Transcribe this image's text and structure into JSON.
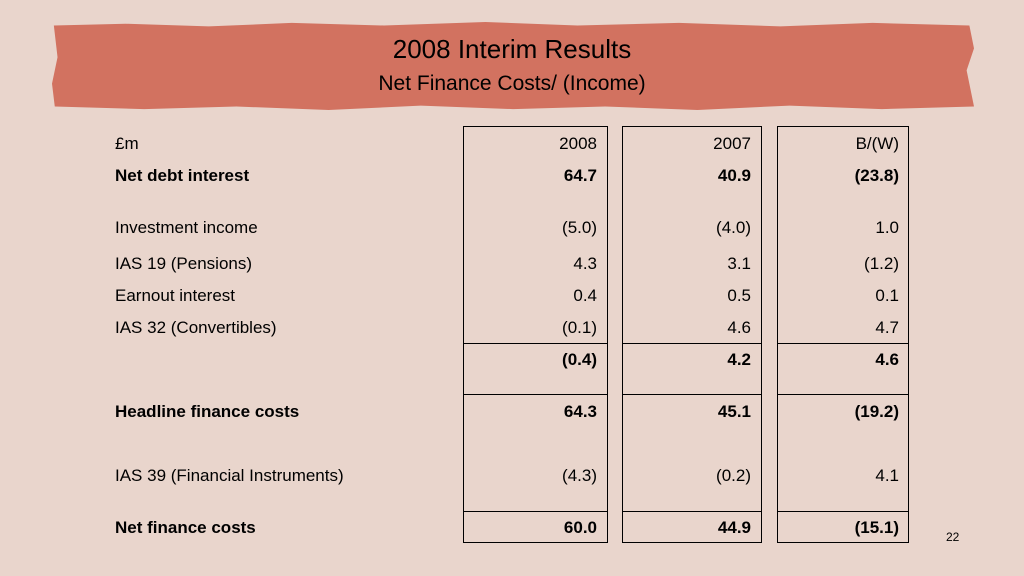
{
  "header": {
    "title": "2008 Interim Results",
    "subtitle": "Net Finance Costs/ (Income)"
  },
  "table": {
    "columns": [
      "£m",
      "2008",
      "2007",
      "B/(W)"
    ],
    "rows": [
      {
        "label": "Net debt interest",
        "v2008": "64.7",
        "v2007": "40.9",
        "bw": "(23.8)",
        "bold": true
      },
      {
        "label": "Investment income",
        "v2008": "(5.0)",
        "v2007": "(4.0)",
        "bw": "1.0",
        "bold": false
      },
      {
        "label": "IAS 19 (Pensions)",
        "v2008": "4.3",
        "v2007": "3.1",
        "bw": "(1.2)",
        "bold": false
      },
      {
        "label": "Earnout interest",
        "v2008": "0.4",
        "v2007": "0.5",
        "bw": "0.1",
        "bold": false
      },
      {
        "label": "IAS 32 (Convertibles)",
        "v2008": "(0.1)",
        "v2007": "4.6",
        "bw": "4.7",
        "bold": false
      },
      {
        "label": "",
        "v2008": "(0.4)",
        "v2007": "4.2",
        "bw": "4.6",
        "bold": true
      },
      {
        "label": "Headline finance costs",
        "v2008": "64.3",
        "v2007": "45.1",
        "bw": "(19.2)",
        "bold": true
      },
      {
        "label": "IAS 39 (Financial Instruments)",
        "v2008": "(4.3)",
        "v2007": "(0.2)",
        "bw": "4.1",
        "bold": false
      },
      {
        "label": "Net finance costs",
        "v2008": "60.0",
        "v2007": "44.9",
        "bw": "(15.1)",
        "bold": true
      }
    ]
  },
  "footer": {
    "page_number": "22"
  }
}
